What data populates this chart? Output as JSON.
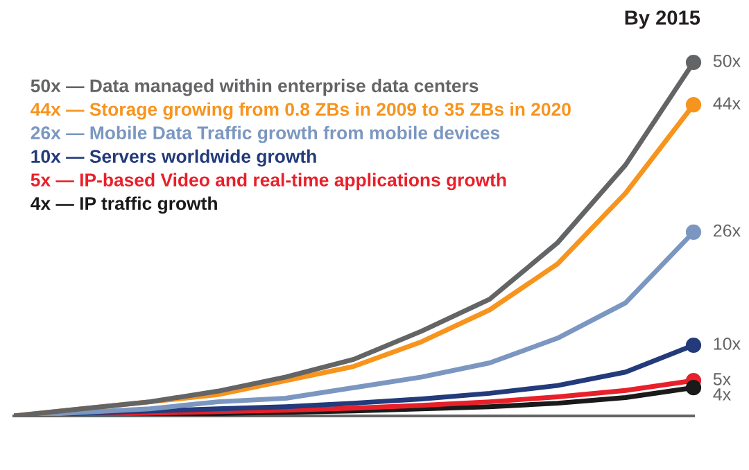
{
  "chart_data": {
    "type": "line",
    "categories": [
      null,
      null,
      null,
      null,
      null,
      null,
      null,
      null,
      null,
      null,
      null
    ],
    "series": [
      {
        "name": "50x — Data managed within enterprise data centers",
        "color": "#636466",
        "values": [
          0,
          1,
          2,
          3.5,
          5.5,
          8,
          12,
          16.5,
          24.5,
          35.5,
          50
        ],
        "value_labels": [
          null,
          null,
          null,
          null,
          null,
          null,
          null,
          null,
          null,
          null,
          "50x"
        ]
      },
      {
        "name": "44x — Storage growing from 0.8 ZBs in 2009 to 35 ZBs in 2020",
        "color": "#f7941d",
        "values": [
          0,
          1,
          2,
          3,
          5,
          7,
          10.5,
          15,
          21.5,
          31.5,
          44
        ],
        "value_labels": [
          null,
          null,
          null,
          null,
          null,
          null,
          null,
          null,
          null,
          null,
          "44x"
        ]
      },
      {
        "name": "26x — Mobile Data Traffic growth from mobile devices",
        "color": "#7b97c1",
        "values": [
          0,
          0.5,
          1,
          2,
          2.5,
          4,
          5.5,
          7.5,
          11,
          16,
          26
        ],
        "value_labels": [
          null,
          null,
          null,
          null,
          null,
          null,
          null,
          null,
          null,
          null,
          "26x"
        ]
      },
      {
        "name": "10x — Servers worldwide growth",
        "color": "#233a7b",
        "values": [
          0,
          0.4,
          0.7,
          1,
          1.3,
          1.8,
          2.4,
          3.2,
          4.3,
          6.2,
          10
        ],
        "value_labels": [
          null,
          null,
          null,
          null,
          null,
          null,
          null,
          null,
          null,
          null,
          "10x"
        ]
      },
      {
        "name": "5x — IP-based Video and real-time applications growth",
        "color": "#e8202a",
        "values": [
          0,
          0.2,
          0.4,
          0.6,
          0.8,
          1.1,
          1.5,
          2,
          2.7,
          3.6,
          5
        ],
        "value_labels": [
          null,
          null,
          null,
          null,
          null,
          null,
          null,
          null,
          null,
          null,
          "5x"
        ]
      },
      {
        "name": "4x — IP traffic growth",
        "color": "#1a1a1a",
        "values": [
          0,
          0.1,
          0.2,
          0.35,
          0.5,
          0.7,
          1,
          1.3,
          1.8,
          2.6,
          4
        ],
        "value_labels": [
          null,
          null,
          null,
          null,
          null,
          null,
          null,
          null,
          null,
          null,
          "4x"
        ]
      }
    ],
    "annotations": [
      "By 2015"
    ],
    "legend": "top left",
    "grid": false,
    "line_style": "solid"
  }
}
